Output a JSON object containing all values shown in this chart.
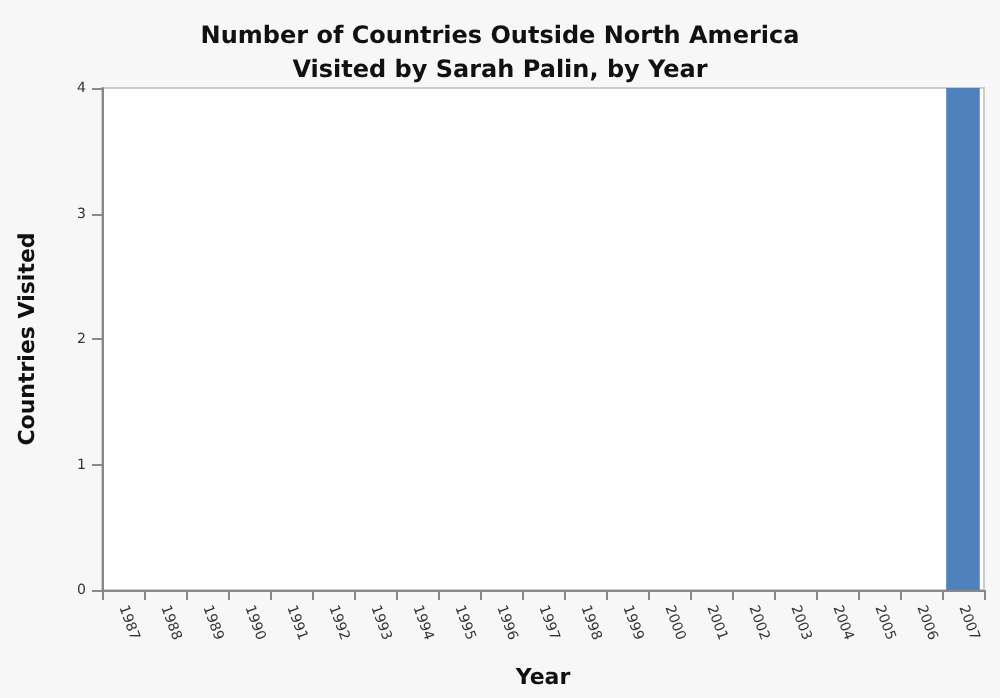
{
  "chart_data": {
    "type": "bar",
    "title": "Number of Countries Outside North America\nVisited by Sarah Palin, by Year",
    "xlabel": "Year",
    "ylabel": "Countries Visited",
    "categories": [
      "1987",
      "1988",
      "1989",
      "1990",
      "1991",
      "1992",
      "1993",
      "1994",
      "1995",
      "1996",
      "1997",
      "1998",
      "1999",
      "2000",
      "2001",
      "2002",
      "2003",
      "2004",
      "2005",
      "2006",
      "2007"
    ],
    "values": [
      0,
      0,
      0,
      0,
      0,
      0,
      0,
      0,
      0,
      0,
      0,
      0,
      0,
      0,
      0,
      0,
      0,
      0,
      0,
      0,
      4
    ],
    "color": "#4f81bd",
    "ylim": [
      0,
      4
    ],
    "yticks": [
      0,
      1,
      2,
      3,
      4
    ]
  }
}
